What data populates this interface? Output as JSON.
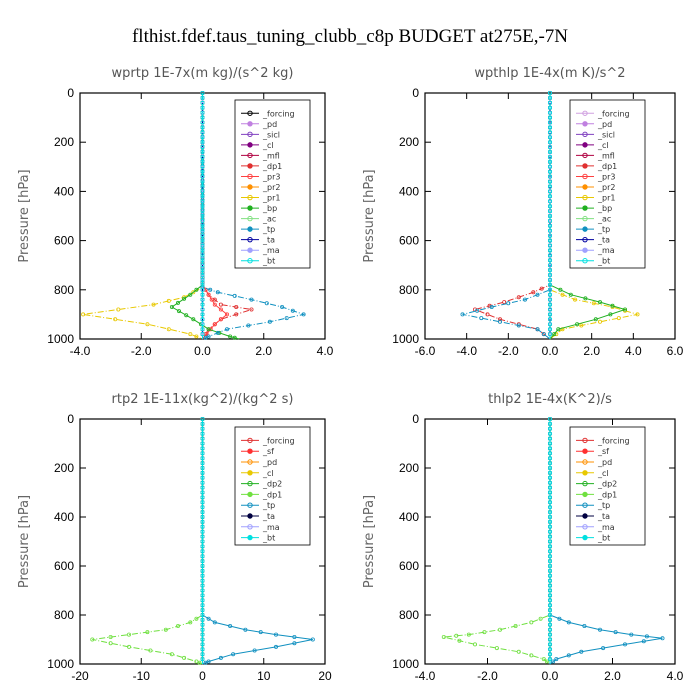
{
  "title": "flthist.fdef.taus_tuning_clubb_c8p  BUDGET at275E,-7N",
  "chart_data": [
    {
      "type": "line",
      "title": "wprtp  1E-7x(m kg)/(s^2 kg)",
      "ylabel": "Pressure [hPa]",
      "xlim": [
        -4,
        4
      ],
      "ylim": [
        1000,
        0
      ],
      "xticks": [
        "-4.0",
        "-2.0",
        "0.0",
        "2.0",
        "4.0"
      ],
      "yticks": [
        "0",
        "200",
        "400",
        "600",
        "800",
        "1000"
      ],
      "legend": {
        "position": "top-right"
      },
      "series": [
        {
          "name": "_forcing",
          "color": "#000000",
          "points": [
            [
              0,
              0
            ],
            [
              0,
              1000
            ]
          ]
        },
        {
          "name": "_pd",
          "color": "#c080e0",
          "points": [
            [
              0,
              0
            ],
            [
              0,
              1000
            ]
          ]
        },
        {
          "name": "_sicl",
          "color": "#8040c0",
          "points": [
            [
              0,
              0
            ],
            [
              0,
              1000
            ]
          ]
        },
        {
          "name": "_cl",
          "color": "#800080",
          "points": [
            [
              0,
              0
            ],
            [
              0,
              1000
            ]
          ]
        },
        {
          "name": "_mfl",
          "color": "#b00040",
          "points": [
            [
              0,
              0
            ],
            [
              0,
              1000
            ]
          ]
        },
        {
          "name": "_dp1",
          "color": "#e03030",
          "points": [
            [
              0,
              0
            ],
            [
              0,
              780
            ],
            [
              0.2,
              820
            ],
            [
              0.6,
              860
            ],
            [
              1.6,
              880
            ],
            [
              0.6,
              920
            ],
            [
              0.2,
              960
            ],
            [
              0,
              1000
            ]
          ]
        },
        {
          "name": "_pr3",
          "color": "#ff4040",
          "points": [
            [
              0,
              0
            ],
            [
              0,
              780
            ],
            [
              0.4,
              860
            ],
            [
              0.8,
              900
            ],
            [
              0.4,
              940
            ],
            [
              0,
              1000
            ]
          ]
        },
        {
          "name": "_pr2",
          "color": "#ff9000",
          "points": [
            [
              0,
              0
            ],
            [
              0,
              1000
            ]
          ]
        },
        {
          "name": "_pr1",
          "color": "#e8c800",
          "points": [
            [
              0,
              0
            ],
            [
              0,
              790
            ],
            [
              -0.6,
              830
            ],
            [
              -1.6,
              860
            ],
            [
              -3.9,
              900
            ],
            [
              -1.8,
              940
            ],
            [
              -0.4,
              980
            ],
            [
              0,
              1000
            ]
          ]
        },
        {
          "name": "_bp",
          "color": "#20b020",
          "points": [
            [
              0,
              0
            ],
            [
              0,
              780
            ],
            [
              -0.4,
              820
            ],
            [
              -1.0,
              870
            ],
            [
              -0.3,
              920
            ],
            [
              0.2,
              960
            ],
            [
              0.9,
              990
            ],
            [
              1.2,
              1000
            ]
          ]
        },
        {
          "name": "_ac",
          "color": "#80e080",
          "points": [
            [
              0,
              0
            ],
            [
              0,
              1000
            ]
          ]
        },
        {
          "name": "_tp",
          "color": "#1090c0",
          "points": [
            [
              0,
              0
            ],
            [
              0,
              790
            ],
            [
              0.5,
              810
            ],
            [
              1.6,
              840
            ],
            [
              2.6,
              870
            ],
            [
              3.3,
              900
            ],
            [
              2.2,
              930
            ],
            [
              0.8,
              960
            ],
            [
              0.2,
              990
            ],
            [
              0,
              1000
            ]
          ]
        },
        {
          "name": "_ta",
          "color": "#0000a0",
          "points": [
            [
              0,
              0
            ],
            [
              0,
              1000
            ]
          ]
        },
        {
          "name": "_ma",
          "color": "#a0a0ff",
          "points": [
            [
              0,
              0
            ],
            [
              0,
              1000
            ]
          ]
        },
        {
          "name": "_bt",
          "color": "#00e0e0",
          "points": [
            [
              0,
              0
            ],
            [
              0,
              1000
            ]
          ]
        }
      ]
    },
    {
      "type": "line",
      "title": "wpthlp  1E-4x(m K)/s^2",
      "ylabel": "Pressure [hPa]",
      "xlim": [
        -6,
        6
      ],
      "ylim": [
        1000,
        0
      ],
      "xticks": [
        "-6.0",
        "-4.0",
        "-2.0",
        "0.0",
        "2.0",
        "4.0",
        "6.0"
      ],
      "yticks": [
        "0",
        "200",
        "400",
        "600",
        "800",
        "1000"
      ],
      "legend": {
        "position": "top-right"
      },
      "series": [
        {
          "name": "_forcing",
          "color": "#d0a0e0",
          "points": [
            [
              0,
              0
            ],
            [
              0,
              1000
            ]
          ]
        },
        {
          "name": "_pd",
          "color": "#c080e0",
          "points": [
            [
              0,
              0
            ],
            [
              0,
              1000
            ]
          ]
        },
        {
          "name": "_sicl",
          "color": "#8040c0",
          "points": [
            [
              0,
              0
            ],
            [
              0,
              1000
            ]
          ]
        },
        {
          "name": "_cl",
          "color": "#800080",
          "points": [
            [
              0,
              0
            ],
            [
              0,
              1000
            ]
          ]
        },
        {
          "name": "_mfl",
          "color": "#b00040",
          "points": [
            [
              0,
              0
            ],
            [
              0,
              1000
            ]
          ]
        },
        {
          "name": "_dp1",
          "color": "#e03030",
          "points": [
            [
              0,
              0
            ],
            [
              0,
              780
            ],
            [
              -0.8,
              810
            ],
            [
              -2.2,
              850
            ],
            [
              -3.6,
              880
            ],
            [
              -2.4,
              920
            ],
            [
              -0.6,
              960
            ],
            [
              0,
              1000
            ]
          ]
        },
        {
          "name": "_pr3",
          "color": "#ff4040",
          "points": [
            [
              0,
              0
            ],
            [
              0,
              1000
            ]
          ]
        },
        {
          "name": "_pr2",
          "color": "#ff9000",
          "points": [
            [
              0,
              0
            ],
            [
              0,
              1000
            ]
          ]
        },
        {
          "name": "_pr1",
          "color": "#e8c800",
          "points": [
            [
              0,
              0
            ],
            [
              0,
              800
            ],
            [
              1.2,
              840
            ],
            [
              3.0,
              870
            ],
            [
              4.2,
              900
            ],
            [
              2.4,
              930
            ],
            [
              0.6,
              960
            ],
            [
              0,
              1000
            ]
          ]
        },
        {
          "name": "_bp",
          "color": "#20b020",
          "points": [
            [
              0,
              0
            ],
            [
              0,
              780
            ],
            [
              1.0,
              820
            ],
            [
              2.4,
              850
            ],
            [
              3.6,
              880
            ],
            [
              2.2,
              920
            ],
            [
              0.4,
              960
            ],
            [
              0,
              1000
            ]
          ]
        },
        {
          "name": "_ac",
          "color": "#80e080",
          "points": [
            [
              0,
              0
            ],
            [
              0,
              1000
            ]
          ]
        },
        {
          "name": "_tp",
          "color": "#1090c0",
          "points": [
            [
              0,
              0
            ],
            [
              0,
              800
            ],
            [
              -1.2,
              840
            ],
            [
              -2.8,
              870
            ],
            [
              -4.2,
              900
            ],
            [
              -2.4,
              930
            ],
            [
              -0.6,
              960
            ],
            [
              0,
              1000
            ]
          ]
        },
        {
          "name": "_ta",
          "color": "#0000a0",
          "points": [
            [
              0,
              0
            ],
            [
              0,
              1000
            ]
          ]
        },
        {
          "name": "_ma",
          "color": "#a0a0ff",
          "points": [
            [
              0,
              0
            ],
            [
              0,
              1000
            ]
          ]
        },
        {
          "name": "_bt",
          "color": "#00e0e0",
          "points": [
            [
              0,
              0
            ],
            [
              0,
              1000
            ]
          ]
        }
      ]
    },
    {
      "type": "line",
      "title": "rtp2  1E-11x(kg^2)/(kg^2 s)",
      "ylabel": "Pressure [hPa]",
      "xlim": [
        -20,
        20
      ],
      "ylim": [
        1000,
        0
      ],
      "xticks": [
        "-20",
        "-10",
        "0",
        "10",
        "20"
      ],
      "yticks": [
        "0",
        "200",
        "400",
        "600",
        "800",
        "1000"
      ],
      "legend": {
        "position": "top-right"
      },
      "series": [
        {
          "name": "_forcing",
          "color": "#e03030",
          "points": [
            [
              0,
              0
            ],
            [
              0,
              1000
            ]
          ]
        },
        {
          "name": "_sf",
          "color": "#ff3030",
          "points": [
            [
              0,
              0
            ],
            [
              0,
              1000
            ]
          ]
        },
        {
          "name": "_pd",
          "color": "#ff9000",
          "points": [
            [
              0,
              0
            ],
            [
              0,
              1000
            ]
          ]
        },
        {
          "name": "_cl",
          "color": "#e8c800",
          "points": [
            [
              0,
              0
            ],
            [
              0,
              1000
            ]
          ]
        },
        {
          "name": "_dp2",
          "color": "#20b020",
          "points": [
            [
              0,
              0
            ],
            [
              0,
              1000
            ]
          ]
        },
        {
          "name": "_dp1",
          "color": "#70e040",
          "points": [
            [
              0,
              0
            ],
            [
              0,
              800
            ],
            [
              -2,
              830
            ],
            [
              -6,
              860
            ],
            [
              -12,
              880
            ],
            [
              -18,
              900
            ],
            [
              -12,
              930
            ],
            [
              -5,
              960
            ],
            [
              -1,
              990
            ],
            [
              0,
              1000
            ]
          ]
        },
        {
          "name": "_tp",
          "color": "#1090c0",
          "points": [
            [
              0,
              0
            ],
            [
              0,
              800
            ],
            [
              2,
              830
            ],
            [
              7,
              860
            ],
            [
              12,
              880
            ],
            [
              18,
              900
            ],
            [
              12,
              930
            ],
            [
              5,
              960
            ],
            [
              1,
              990
            ],
            [
              0,
              1000
            ]
          ]
        },
        {
          "name": "_ta",
          "color": "#000040",
          "points": [
            [
              0,
              0
            ],
            [
              0,
              1000
            ]
          ]
        },
        {
          "name": "_ma",
          "color": "#a0a0ff",
          "points": [
            [
              0,
              0
            ],
            [
              0,
              1000
            ]
          ]
        },
        {
          "name": "_bt",
          "color": "#00e0e0",
          "points": [
            [
              0,
              0
            ],
            [
              0,
              1000
            ]
          ]
        }
      ]
    },
    {
      "type": "line",
      "title": "thlp2  1E-4x(K^2)/s",
      "ylabel": "Pressure [hPa]",
      "xlim": [
        -4,
        4
      ],
      "ylim": [
        1000,
        0
      ],
      "xticks": [
        "-4.0",
        "-2.0",
        "0.0",
        "2.0",
        "4.0"
      ],
      "yticks": [
        "0",
        "200",
        "400",
        "600",
        "800",
        "1000"
      ],
      "legend": {
        "position": "top-right"
      },
      "series": [
        {
          "name": "_forcing",
          "color": "#e03030",
          "points": [
            [
              0,
              0
            ],
            [
              0,
              1000
            ]
          ]
        },
        {
          "name": "_sf",
          "color": "#ff3030",
          "points": [
            [
              0,
              0
            ],
            [
              0,
              1000
            ]
          ]
        },
        {
          "name": "_pd",
          "color": "#ff9000",
          "points": [
            [
              0,
              0
            ],
            [
              0,
              1000
            ]
          ]
        },
        {
          "name": "_cl",
          "color": "#e8c800",
          "points": [
            [
              0,
              0
            ],
            [
              0,
              1000
            ]
          ]
        },
        {
          "name": "_dp2",
          "color": "#20b020",
          "points": [
            [
              0,
              0
            ],
            [
              0,
              1000
            ]
          ]
        },
        {
          "name": "_dp1",
          "color": "#70e040",
          "points": [
            [
              0,
              0
            ],
            [
              0,
              800
            ],
            [
              -0.6,
              830
            ],
            [
              -1.6,
              860
            ],
            [
              -2.6,
              880
            ],
            [
              -3.4,
              890
            ],
            [
              -2.4,
              920
            ],
            [
              -1.0,
              950
            ],
            [
              -0.2,
              980
            ],
            [
              0,
              1000
            ]
          ]
        },
        {
          "name": "_tp",
          "color": "#1090c0",
          "points": [
            [
              0,
              0
            ],
            [
              0,
              800
            ],
            [
              0.6,
              830
            ],
            [
              1.6,
              860
            ],
            [
              2.6,
              880
            ],
            [
              3.6,
              895
            ],
            [
              2.4,
              920
            ],
            [
              1.0,
              950
            ],
            [
              0.2,
              980
            ],
            [
              0,
              1000
            ]
          ]
        },
        {
          "name": "_ta",
          "color": "#000040",
          "points": [
            [
              0,
              0
            ],
            [
              0,
              1000
            ]
          ]
        },
        {
          "name": "_ma",
          "color": "#a0a0ff",
          "points": [
            [
              0,
              0
            ],
            [
              0,
              1000
            ]
          ]
        },
        {
          "name": "_bt",
          "color": "#00e0e0",
          "points": [
            [
              0,
              0
            ],
            [
              0,
              1000
            ]
          ]
        }
      ]
    }
  ]
}
